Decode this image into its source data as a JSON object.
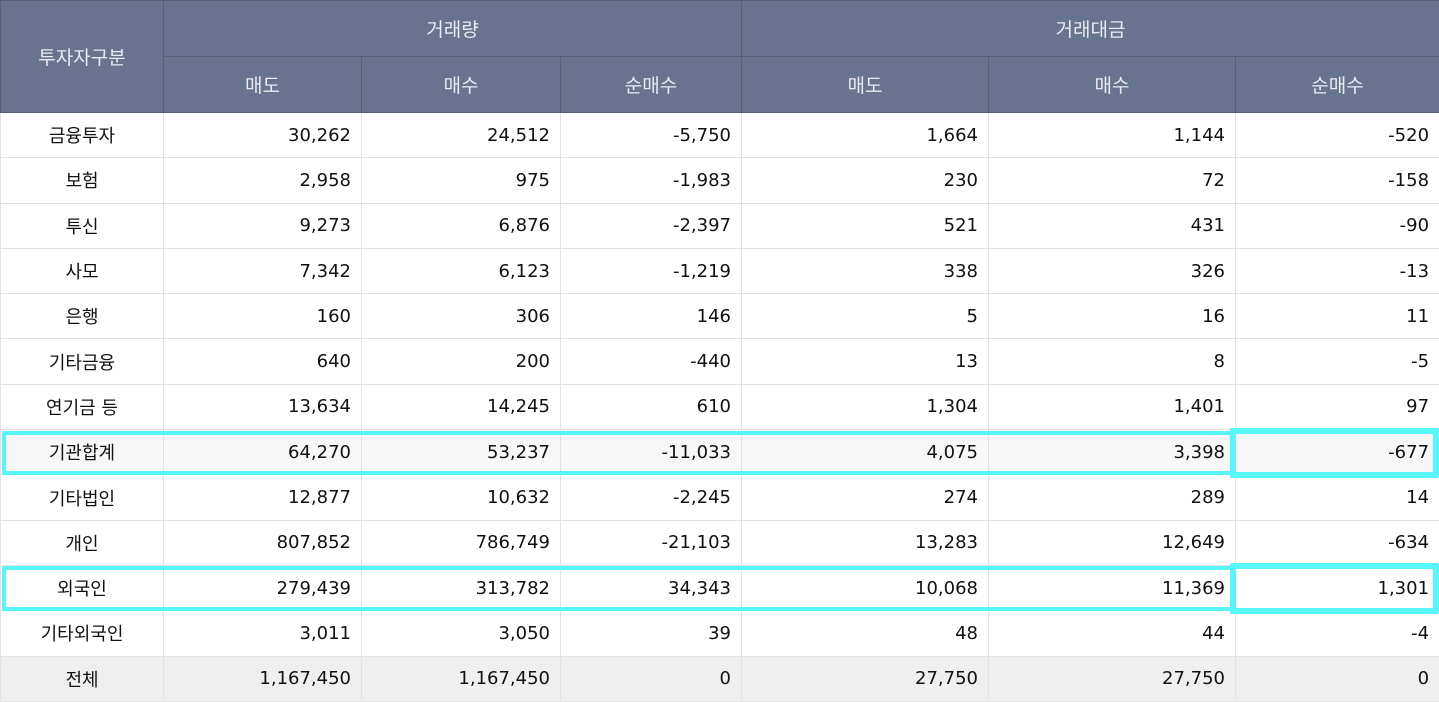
{
  "header": {
    "investor_type": "투자자구분",
    "group_volume": "거래량",
    "group_value": "거래대금",
    "sub": [
      "매도",
      "매수",
      "순매수",
      "매도",
      "매수",
      "순매수"
    ]
  },
  "highlight_color": "#58f6f8",
  "rows": [
    {
      "label": "금융투자",
      "cells": [
        "30,262",
        "24,512",
        "-5,750",
        "1,664",
        "1,144",
        "-520"
      ]
    },
    {
      "label": "보험",
      "cells": [
        "2,958",
        "975",
        "-1,983",
        "230",
        "72",
        "-158"
      ]
    },
    {
      "label": "투신",
      "cells": [
        "9,273",
        "6,876",
        "-2,397",
        "521",
        "431",
        "-90"
      ]
    },
    {
      "label": "사모",
      "cells": [
        "7,342",
        "6,123",
        "-1,219",
        "338",
        "326",
        "-13"
      ]
    },
    {
      "label": "은행",
      "cells": [
        "160",
        "306",
        "146",
        "5",
        "16",
        "11"
      ]
    },
    {
      "label": "기타금융",
      "cells": [
        "640",
        "200",
        "-440",
        "13",
        "8",
        "-5"
      ]
    },
    {
      "label": "연기금 등",
      "cells": [
        "13,634",
        "14,245",
        "610",
        "1,304",
        "1,401",
        "97"
      ]
    },
    {
      "label": "기관합계",
      "cells": [
        "64,270",
        "53,237",
        "-11,033",
        "4,075",
        "3,398",
        "-677"
      ],
      "highlighted": true
    },
    {
      "label": "기타법인",
      "cells": [
        "12,877",
        "10,632",
        "-2,245",
        "274",
        "289",
        "14"
      ]
    },
    {
      "label": "개인",
      "cells": [
        "807,852",
        "786,749",
        "-21,103",
        "13,283",
        "12,649",
        "-634"
      ]
    },
    {
      "label": "외국인",
      "cells": [
        "279,439",
        "313,782",
        "34,343",
        "10,068",
        "11,369",
        "1,301"
      ],
      "highlighted": true
    },
    {
      "label": "기타외국인",
      "cells": [
        "3,011",
        "3,050",
        "39",
        "48",
        "44",
        "-4"
      ]
    },
    {
      "label": "전체",
      "cells": [
        "1,167,450",
        "1,167,450",
        "0",
        "27,750",
        "27,750",
        "0"
      ]
    }
  ]
}
